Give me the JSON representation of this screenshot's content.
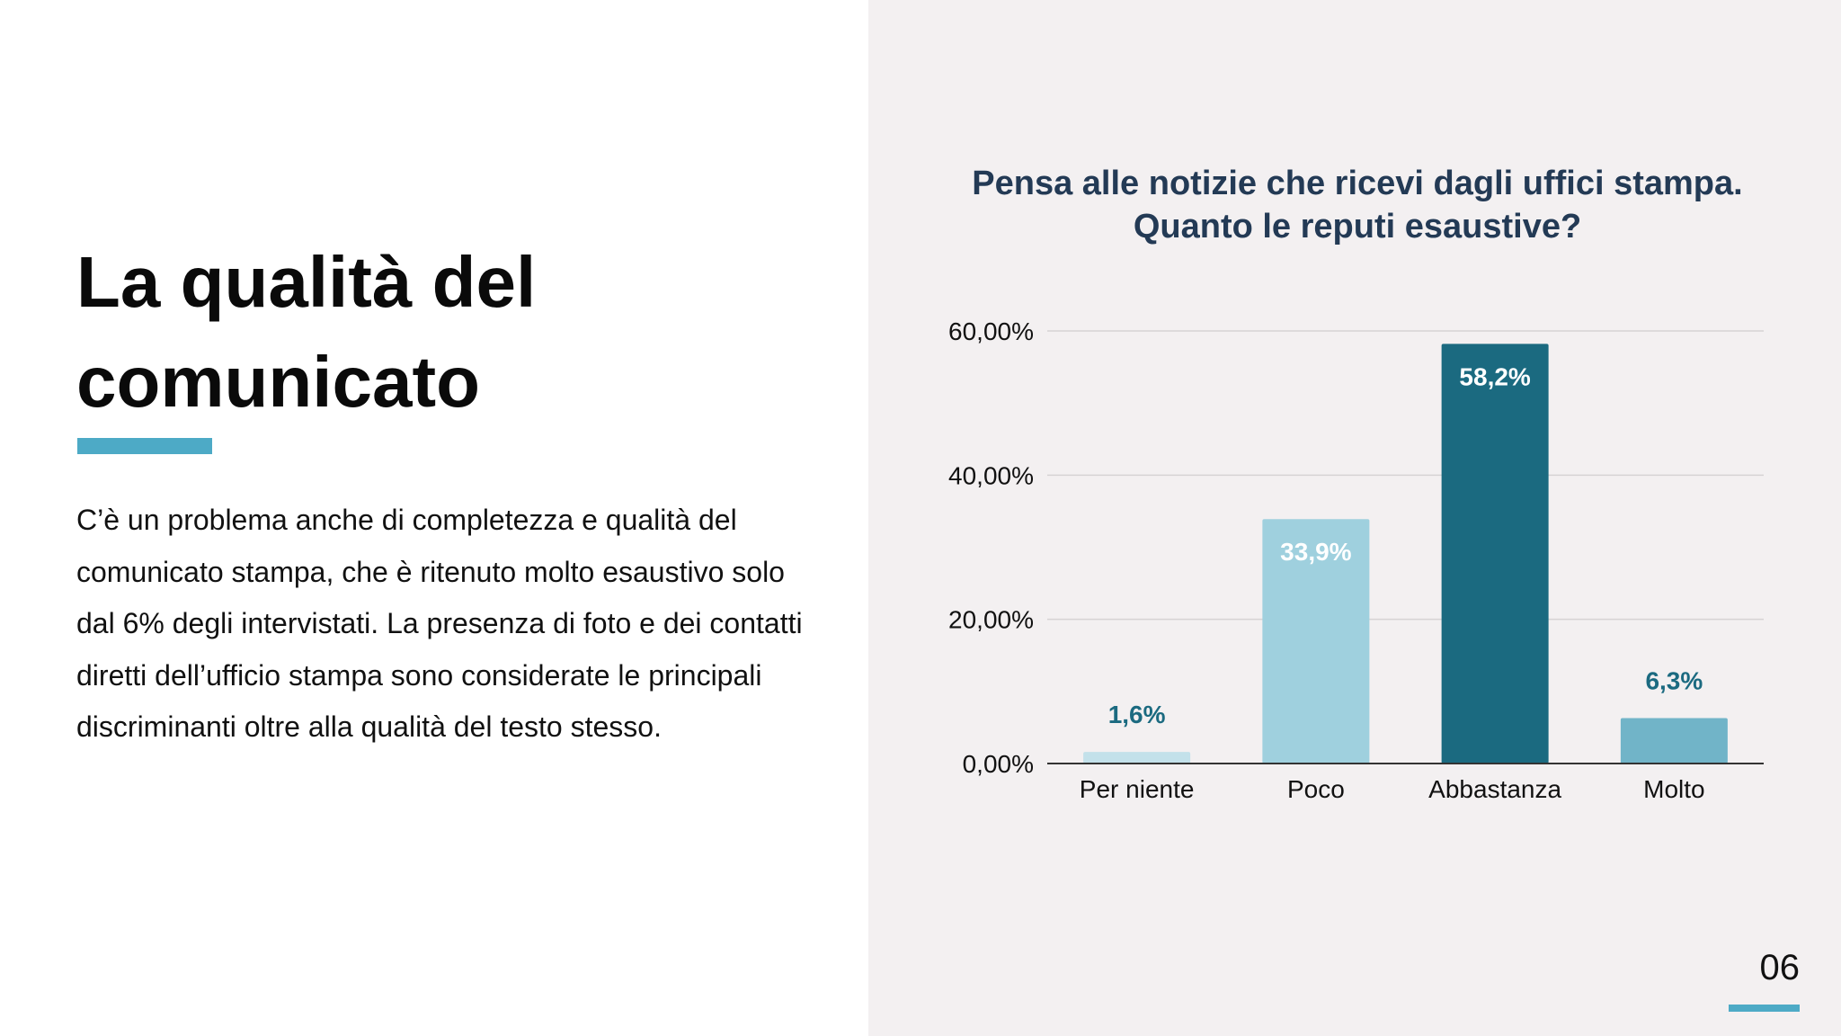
{
  "slide": {
    "title_line1": "La qualità del",
    "title_line2": "comunicato",
    "body": "C’è un problema anche di completezza e qualità del comunicato stampa, che è ritenuto molto esaustivo solo dal 6% degli intervistati. La presenza di foto e dei contatti diretti dell’ufficio stampa sono considerate le principali discriminanti oltre alla qualità del testo stesso.",
    "page_number": "06"
  },
  "colors": {
    "accent": "#4daac6",
    "title_text": "#0a0a0a",
    "chart_title": "#233a55",
    "right_background": "#f3f0f1",
    "label_dark": "#1b6a80"
  },
  "chart_data": {
    "type": "bar",
    "title_line1": "Pensa alle notizie che ricevi dagli uffici stampa.",
    "title_line2": "Quanto le reputi esaustive?",
    "xlabel": "",
    "ylabel": "",
    "categories": [
      "Per niente",
      "Poco",
      "Abbastanza",
      "Molto"
    ],
    "values": [
      1.6,
      33.9,
      58.2,
      6.3
    ],
    "value_labels": [
      "1,6%",
      "33,9%",
      "58,2%",
      "6,3%"
    ],
    "bar_colors": [
      "#c3e1ea",
      "#9fd0de",
      "#1b6a80",
      "#71b4c8"
    ],
    "label_colors": [
      "#1b6a80",
      "#ffffff",
      "#ffffff",
      "#1b6a80"
    ],
    "label_inside": [
      false,
      true,
      true,
      false
    ],
    "ylim": [
      0,
      60
    ],
    "yticks": [
      0,
      20,
      40,
      60
    ],
    "ytick_labels": [
      "0,00%",
      "20,00%",
      "40,00%",
      "60,00%"
    ],
    "grid": true,
    "legend": "none"
  }
}
